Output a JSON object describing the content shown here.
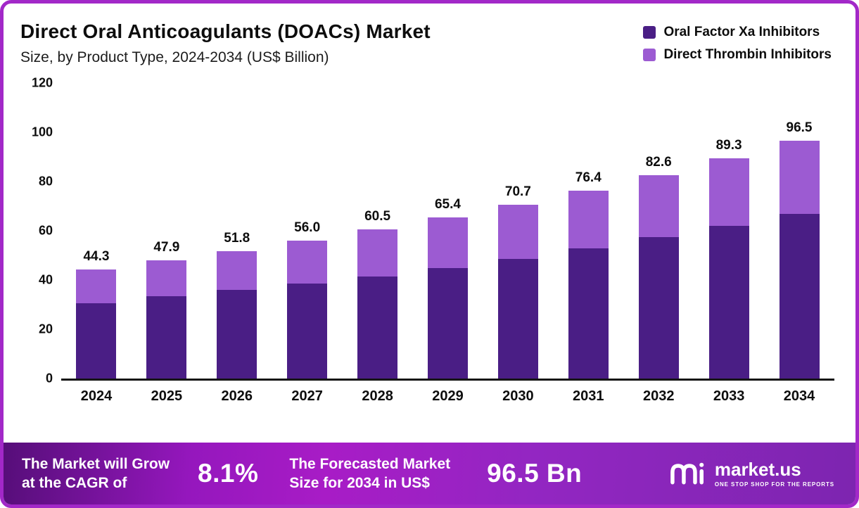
{
  "chart_data": {
    "type": "bar",
    "stacked": true,
    "title": "Direct Oral Anticoagulants (DOACs) Market",
    "subtitle": "Size, by Product Type, 2024-2034 (US$ Billion)",
    "unit": "US$ Billion",
    "categories": [
      "2024",
      "2025",
      "2026",
      "2027",
      "2028",
      "2029",
      "2030",
      "2031",
      "2032",
      "2033",
      "2034"
    ],
    "series": [
      {
        "name": "Oral Factor Xa Inhibitors",
        "color": "#4a1e85",
        "values": [
          30.5,
          33.5,
          36.0,
          38.5,
          41.5,
          45.0,
          48.5,
          53.0,
          57.5,
          62.0,
          67.0
        ]
      },
      {
        "name": "Direct Thrombin Inhibitors",
        "color": "#9c5bd2",
        "values": [
          13.8,
          14.4,
          15.8,
          17.5,
          19.0,
          20.4,
          22.2,
          23.4,
          25.1,
          27.3,
          29.5
        ]
      }
    ],
    "totals_labels": [
      "44.3",
      "47.9",
      "51.8",
      "56.0",
      "60.5",
      "65.4",
      "70.7",
      "76.4",
      "82.6",
      "89.3",
      "96.5"
    ],
    "ylim": [
      0,
      120
    ],
    "yticks": [
      0,
      20,
      40,
      60,
      80,
      100,
      120
    ],
    "grid": false,
    "legend_position": "top-right"
  },
  "banner": {
    "growth_text_line1": "The Market will Grow",
    "growth_text_line2": "at the CAGR of",
    "cagr_value": "8.1%",
    "forecast_text_line1": "The Forecasted Market",
    "forecast_text_line2": "Size for 2034 in US$",
    "forecast_value": "96.5 Bn",
    "logo_text": "market.us",
    "logo_tagline": "ONE STOP SHOP FOR THE REPORTS"
  },
  "colors": {
    "border": "#a228c8",
    "dark_series": "#4a1e85",
    "light_series": "#9c5bd2",
    "banner_gradient": [
      "#560e79",
      "#a81cc6",
      "#7d25b0"
    ],
    "axis": "#161616",
    "text": "#0d0d0d"
  }
}
